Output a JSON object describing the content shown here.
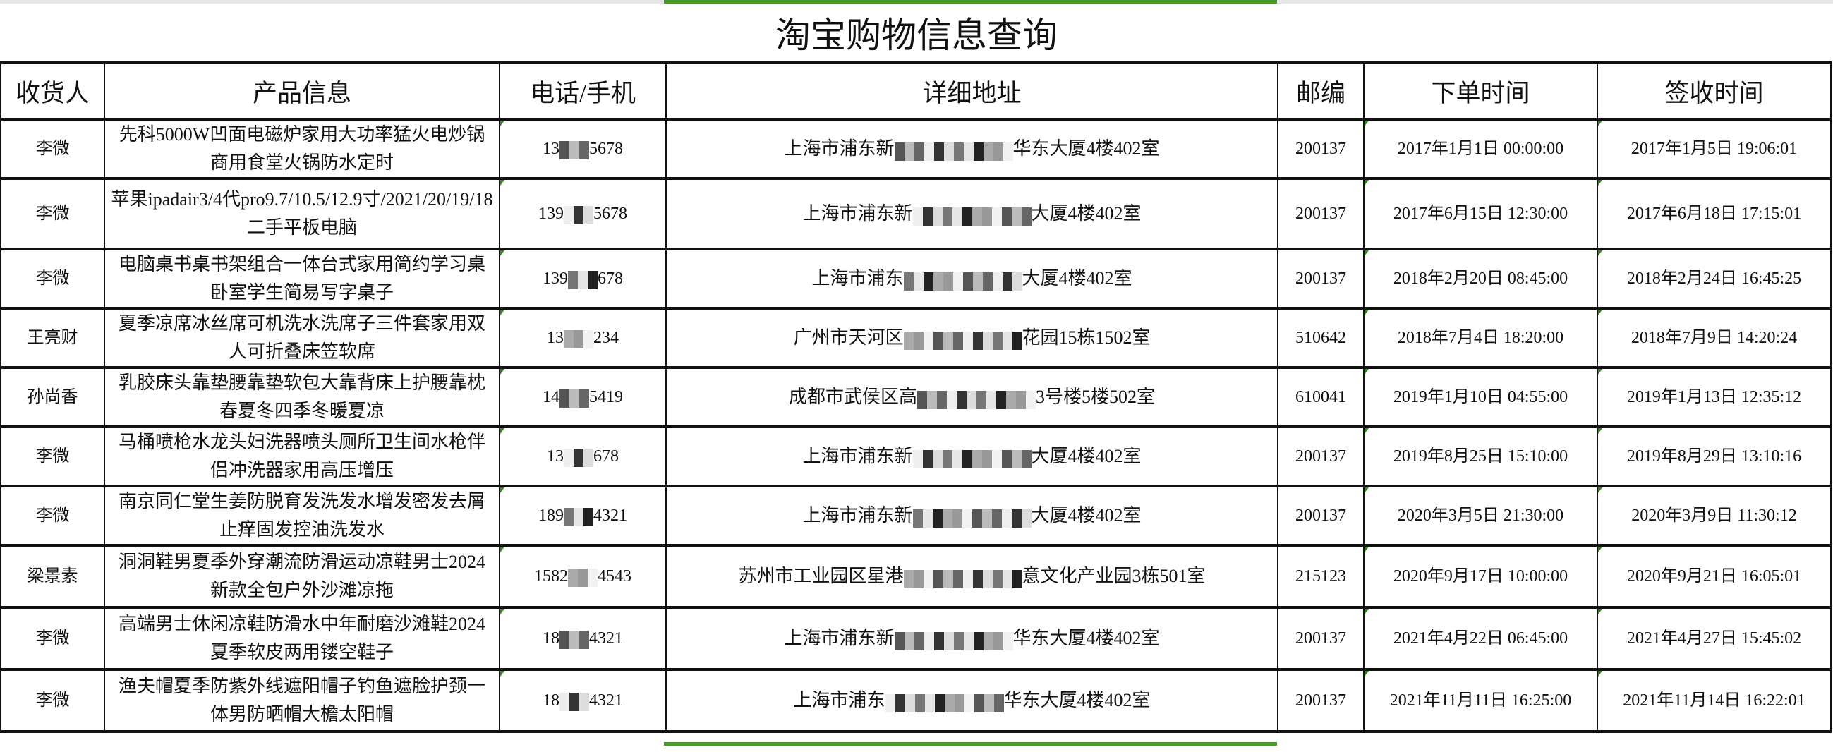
{
  "title": "淘宝购物信息查询",
  "colors": {
    "accent_green": "#4a9a2a",
    "grid": "#111111"
  },
  "headers": [
    "收货人",
    "产品信息",
    "电话/手机",
    "详细地址",
    "邮编",
    "下单时间",
    "签收时间"
  ],
  "rows": [
    {
      "name": "李微",
      "product": "先科5000W凹面电磁炉家用大功率猛火电炒锅商用食堂火锅防水定时",
      "phone_start": "13",
      "phone_end": "5678",
      "addr_start": "上海市浦东新",
      "addr_end": "华东大厦4楼402室",
      "zip": "200137",
      "order_time": "2017年1月1日 00:00:00",
      "sign_time": "2017年1月5日 19:06:01"
    },
    {
      "name": "李微",
      "product": "苹果ipadair3/4代pro9.7/10.5/12.9寸/2021/20/19/18二手平板电脑",
      "phone_start": "139",
      "phone_end": "5678",
      "addr_start": "上海市浦东新",
      "addr_end": "大厦4楼402室",
      "zip": "200137",
      "order_time": "2017年6月15日 12:30:00",
      "sign_time": "2017年6月18日 17:15:01"
    },
    {
      "name": "李微",
      "product": "电脑桌书桌书架组合一体台式家用简约学习桌卧室学生简易写字桌子",
      "phone_start": "139",
      "phone_end": "678",
      "addr_start": "上海市浦东",
      "addr_end": "大厦4楼402室",
      "zip": "200137",
      "order_time": "2018年2月20日 08:45:00",
      "sign_time": "2018年2月24日 16:45:25"
    },
    {
      "name": "王亮财",
      "product": "夏季凉席冰丝席可机洗水洗席子三件套家用双人可折叠床笠软席",
      "phone_start": "13",
      "phone_end": "234",
      "addr_start": "广州市天河区",
      "addr_end": "花园15栋1502室",
      "zip": "510642",
      "order_time": "2018年7月4日 18:20:00",
      "sign_time": "2018年7月9日 14:20:24"
    },
    {
      "name": "孙尚香",
      "product": "乳胶床头靠垫腰靠垫软包大靠背床上护腰靠枕春夏冬四季冬暖夏凉",
      "phone_start": "14",
      "phone_end": "5419",
      "addr_start": "成都市武侯区高",
      "addr_end": "3号楼5楼502室",
      "zip": "610041",
      "order_time": "2019年1月10日 04:55:00",
      "sign_time": "2019年1月13日 12:35:12"
    },
    {
      "name": "李微",
      "product": "马桶喷枪水龙头妇洗器喷头厕所卫生间水枪伴侣冲洗器家用高压增压",
      "phone_start": "13",
      "phone_end": "678",
      "addr_start": "上海市浦东新",
      "addr_end": "大厦4楼402室",
      "zip": "200137",
      "order_time": "2019年8月25日 15:10:00",
      "sign_time": "2019年8月29日 13:10:16"
    },
    {
      "name": "李微",
      "product": "南京同仁堂生姜防脱育发洗发水增发密发去屑止痒固发控油洗发水",
      "phone_start": "189",
      "phone_end": "4321",
      "addr_start": "上海市浦东新",
      "addr_end": "大厦4楼402室",
      "zip": "200137",
      "order_time": "2020年3月5日 21:30:00",
      "sign_time": "2020年3月9日 11:30:12"
    },
    {
      "name": "梁景素",
      "product": "洞洞鞋男夏季外穿潮流防滑运动凉鞋男士2024新款全包户外沙滩凉拖",
      "phone_start": "1582",
      "phone_end": "4543",
      "addr_start": "苏州市工业园区星港",
      "addr_end": "意文化产业园3栋501室",
      "zip": "215123",
      "order_time": "2020年9月17日 10:00:00",
      "sign_time": "2020年9月21日 16:05:01"
    },
    {
      "name": "李微",
      "product": "高端男士休闲凉鞋防滑水中年耐磨沙滩鞋2024夏季软皮两用镂空鞋子",
      "phone_start": "18",
      "phone_end": "4321",
      "addr_start": "上海市浦东新",
      "addr_end": "华东大厦4楼402室",
      "zip": "200137",
      "order_time": "2021年4月22日 06:45:00",
      "sign_time": "2021年4月27日 15:45:02"
    },
    {
      "name": "李微",
      "product": "渔夫帽夏季防紫外线遮阳帽子钓鱼遮脸护颈一体男防晒帽大檐太阳帽",
      "phone_start": "18",
      "phone_end": "4321",
      "addr_start": "上海市浦东",
      "addr_end": "华东大厦4楼402室",
      "zip": "200137",
      "order_time": "2021年11月11日 16:25:00",
      "sign_time": "2021年11月14日 16:22:01"
    }
  ]
}
